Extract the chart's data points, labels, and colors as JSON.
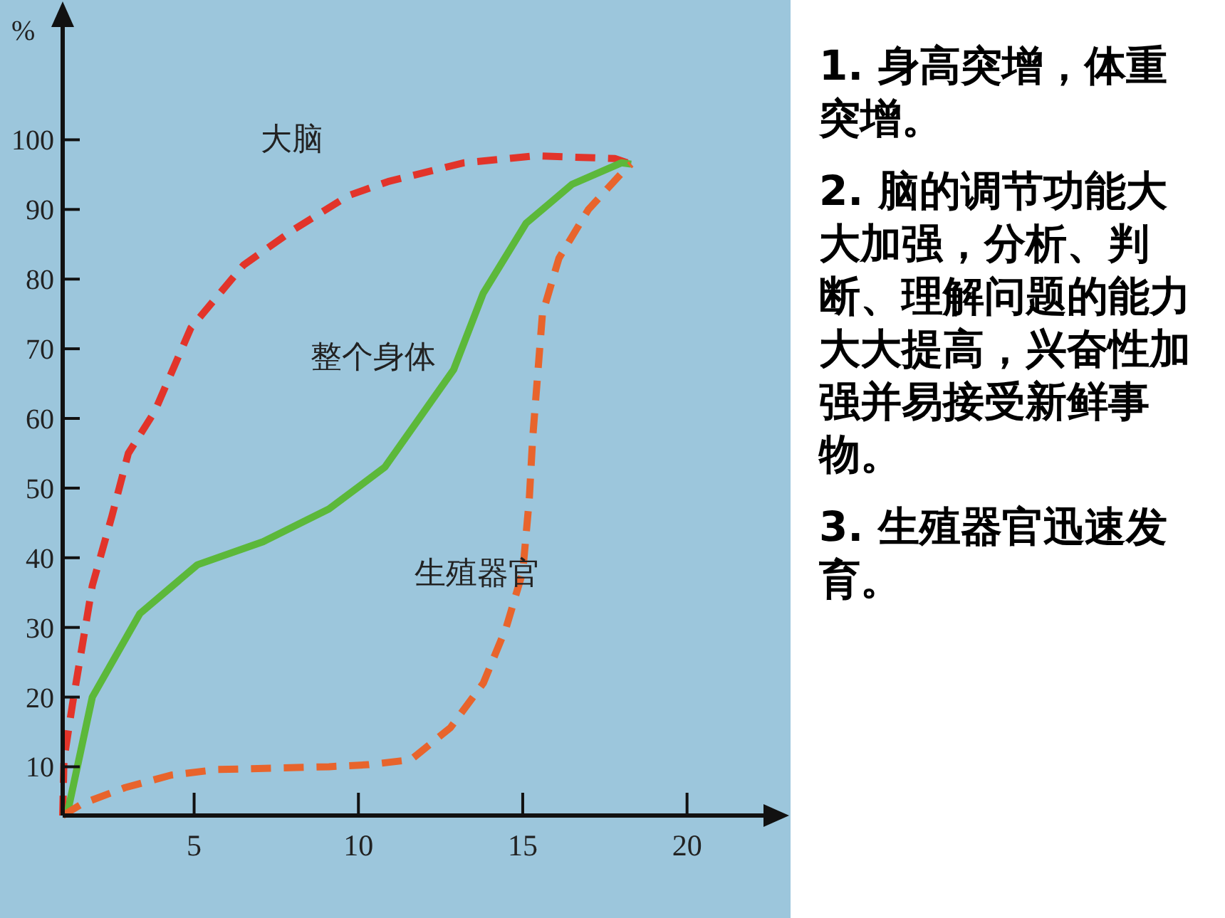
{
  "chart_data": {
    "type": "line",
    "ylabel": "%",
    "xlim": [
      1,
      22.5
    ],
    "ylim": [
      3,
      117
    ],
    "xticks": [
      5,
      10,
      15,
      20
    ],
    "yticks": [
      10,
      20,
      30,
      40,
      50,
      60,
      70,
      80,
      90,
      100
    ],
    "legend": false,
    "marker": "none",
    "series": [
      {
        "name": "大脑",
        "color": "#e2342a",
        "line_style": "dashed",
        "x": [
          1,
          1.04,
          1.3,
          1.9,
          2.5,
          3.0,
          3.8,
          4.9,
          6.5,
          8,
          9.7,
          10.9,
          13.2,
          15.4,
          17.8,
          18.3
        ],
        "values": [
          3,
          11,
          19,
          36,
          46,
          55,
          61,
          73,
          82,
          87,
          92,
          94,
          96.7,
          97.7,
          97.3,
          96.5
        ]
      },
      {
        "name": "整个身体",
        "color": "#5cb83a",
        "line_style": "solid",
        "x": [
          1,
          1.17,
          1.9,
          3.35,
          5.1,
          7.1,
          9.1,
          10.8,
          12.9,
          13.8,
          15.1,
          16.5,
          18,
          18.3
        ],
        "values": [
          3,
          3.9,
          20,
          32,
          39,
          42.3,
          47,
          53,
          67,
          78,
          88,
          93.6,
          96.7,
          96.5
        ]
      },
      {
        "name": "生殖器官",
        "color": "#e8642c",
        "line_style": "dashed",
        "x": [
          1,
          1.6,
          2.9,
          4.3,
          5.7,
          9.1,
          10.3,
          11.6,
          12.8,
          13.8,
          14.5,
          15,
          15.2,
          15.3,
          15.6,
          16.1,
          17,
          18.1,
          18.3
        ],
        "values": [
          3,
          4.7,
          7,
          8.8,
          9.6,
          10,
          10.3,
          11,
          15.6,
          22,
          30,
          38,
          48.5,
          57,
          75,
          83,
          90,
          95.7,
          96.5
        ]
      }
    ],
    "annotations": [
      "1. 身高突增，体重突增。",
      "2. 脑的调节功能大大加强，分析、判断、理解问题的能力大大提高，兴奋性加强并易接受新鲜事物。",
      "3. 生殖器官迅速发育。"
    ]
  }
}
